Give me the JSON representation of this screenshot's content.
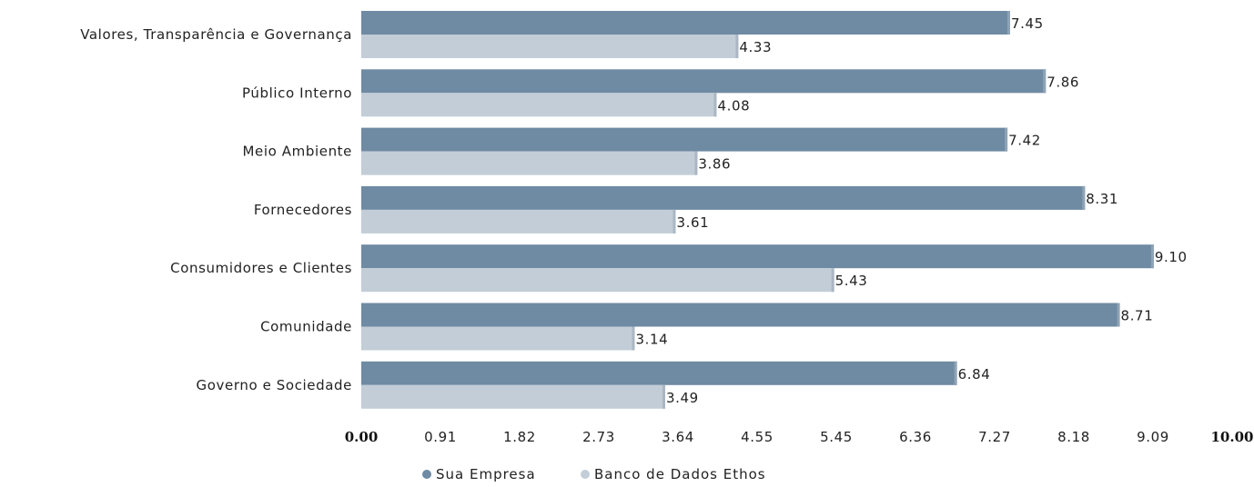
{
  "chart_data": {
    "type": "bar",
    "orientation": "horizontal",
    "categories": [
      "Valores, Transparência e Governança",
      "Público Interno",
      "Meio Ambiente",
      "Fornecedores",
      "Consumidores e Clientes",
      "Comunidade",
      "Governo e Sociedade"
    ],
    "series": [
      {
        "name": "Sua Empresa",
        "color": "#6f8aa3",
        "values": [
          7.45,
          7.86,
          7.42,
          8.31,
          9.1,
          8.71,
          6.84
        ],
        "labels": [
          "7.45",
          "7.86",
          "7.42",
          "8.31",
          "9.10",
          "8.71",
          "6.84"
        ]
      },
      {
        "name": "Banco de Dados Ethos",
        "color": "#c2cdd7",
        "values": [
          4.33,
          4.08,
          3.86,
          3.61,
          5.43,
          3.14,
          3.49
        ],
        "labels": [
          "4.33",
          "4.08",
          "3.86",
          "3.61",
          "5.43",
          "3.14",
          "3.49"
        ]
      }
    ],
    "xlim": [
      0,
      10
    ],
    "x_ticks": [
      "0.00",
      "0.91",
      "1.82",
      "2.73",
      "3.64",
      "4.55",
      "5.45",
      "6.36",
      "7.27",
      "8.18",
      "9.09",
      "10.00"
    ],
    "x_ticks_bold": [
      "0.00",
      "10.00"
    ],
    "grid": false,
    "legend_position": "bottom-center",
    "title": "",
    "xlabel": "",
    "ylabel": ""
  }
}
